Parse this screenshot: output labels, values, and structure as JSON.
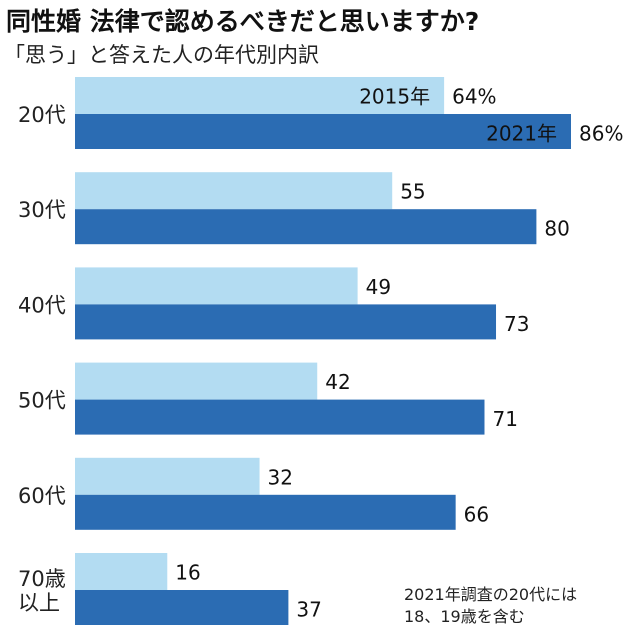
{
  "chart_data": {
    "type": "bar",
    "orientation": "horizontal",
    "title": "同性婚 法律で認めるべきだと思いますか?",
    "subtitle": "「思う」と答えた人の年代別内訳",
    "categories": [
      "20代",
      "30代",
      "40代",
      "50代",
      "60代",
      "70歳\n以上"
    ],
    "series": [
      {
        "name": "2015年",
        "values": [
          64,
          55,
          49,
          42,
          32,
          16
        ],
        "color": "#b3dcf2"
      },
      {
        "name": "2021年",
        "values": [
          86,
          80,
          73,
          71,
          66,
          37
        ],
        "color": "#2b6cb3"
      }
    ],
    "value_labels": {
      "2015年": [
        "64%",
        "55",
        "49",
        "42",
        "32",
        "16"
      ],
      "2021年": [
        "86%",
        "80",
        "73",
        "71",
        "66",
        "37"
      ]
    },
    "xlim": [
      0,
      100
    ],
    "grid": false,
    "legend": "inside first bars",
    "note": [
      "2021年調査の20代には",
      "18、19歳を含む"
    ]
  }
}
